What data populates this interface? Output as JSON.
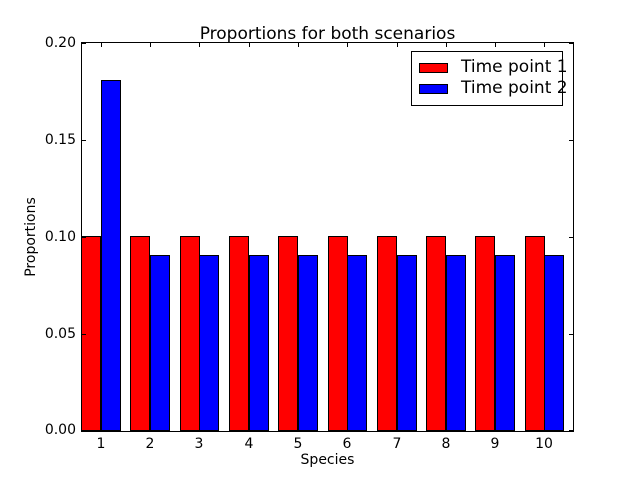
{
  "chart_data": {
    "type": "bar",
    "title": "Proportions for both scenarios",
    "xlabel": "Species",
    "ylabel": "Proportions",
    "categories": [
      "1",
      "2",
      "3",
      "4",
      "5",
      "6",
      "7",
      "8",
      "9",
      "10"
    ],
    "series": [
      {
        "name": "Time point 1",
        "color": "#ff0000",
        "values": [
          0.1,
          0.1,
          0.1,
          0.1,
          0.1,
          0.1,
          0.1,
          0.1,
          0.1,
          0.1
        ]
      },
      {
        "name": "Time point 2",
        "color": "#0000ff",
        "values": [
          0.18,
          0.09,
          0.09,
          0.09,
          0.09,
          0.09,
          0.09,
          0.09,
          0.09,
          0.09
        ]
      }
    ],
    "ylim": [
      0,
      0.2
    ],
    "yticks": [
      {
        "value": 0.0,
        "label": "0.00"
      },
      {
        "value": 0.05,
        "label": "0.05"
      },
      {
        "value": 0.1,
        "label": "0.10"
      },
      {
        "value": 0.15,
        "label": "0.15"
      },
      {
        "value": 0.2,
        "label": "0.20"
      }
    ],
    "bar_edge_color": "#000000",
    "background_color": "#ffffff",
    "legend_position": "upper right",
    "grid": false
  }
}
